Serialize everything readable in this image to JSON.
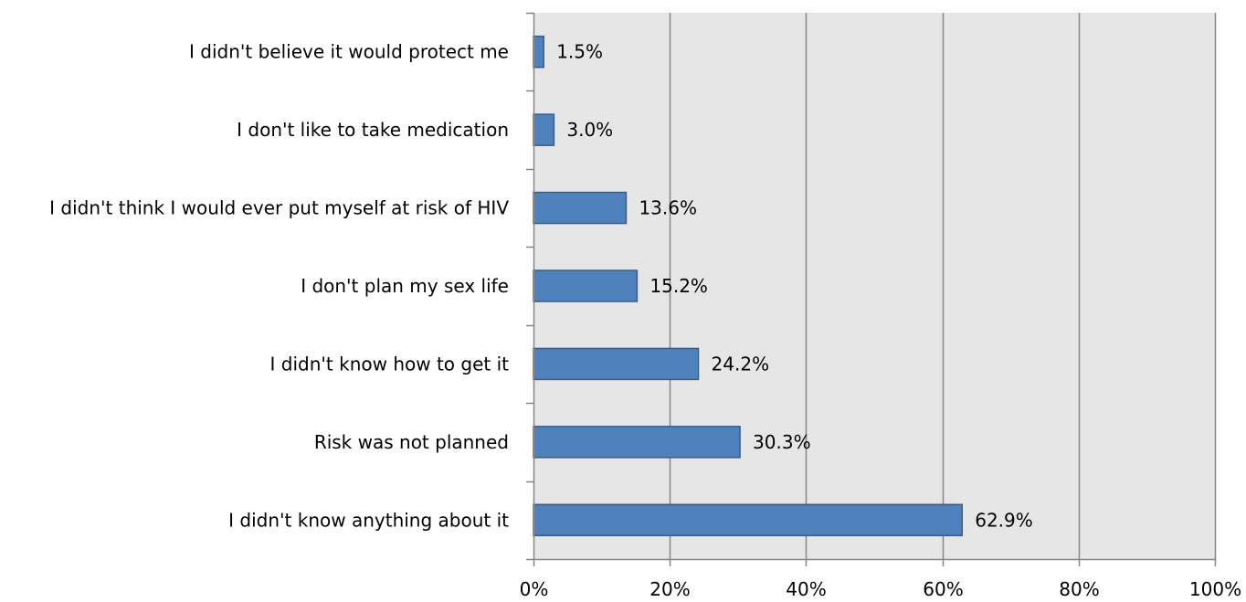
{
  "chart_data": {
    "type": "bar",
    "orientation": "horizontal",
    "categories": [
      "I didn't believe it would protect me",
      "I don't like to take medication",
      "I didn't think I would ever put myself at risk of HIV",
      "I don't plan my sex life",
      "I didn't know how to get it",
      "Risk was not planned",
      "I didn't know anything about it"
    ],
    "values": [
      1.5,
      3.0,
      13.6,
      15.2,
      24.2,
      30.3,
      62.9
    ],
    "data_labels": [
      "1.5%",
      "3.0%",
      "13.6%",
      "15.2%",
      "24.2%",
      "30.3%",
      "62.9%"
    ],
    "xlim": [
      0,
      100
    ],
    "x_ticks": [
      0,
      20,
      40,
      60,
      80,
      100
    ],
    "x_tick_labels": [
      "0%",
      "20%",
      "40%",
      "60%",
      "80%",
      "100%"
    ],
    "grid": true,
    "legend": "none",
    "colors": {
      "bar_fill": "#4f81bd",
      "bar_stroke": "#385d8a",
      "plot_background": "#e6e6e6",
      "gridline": "#868686",
      "axis": "#868686"
    }
  }
}
